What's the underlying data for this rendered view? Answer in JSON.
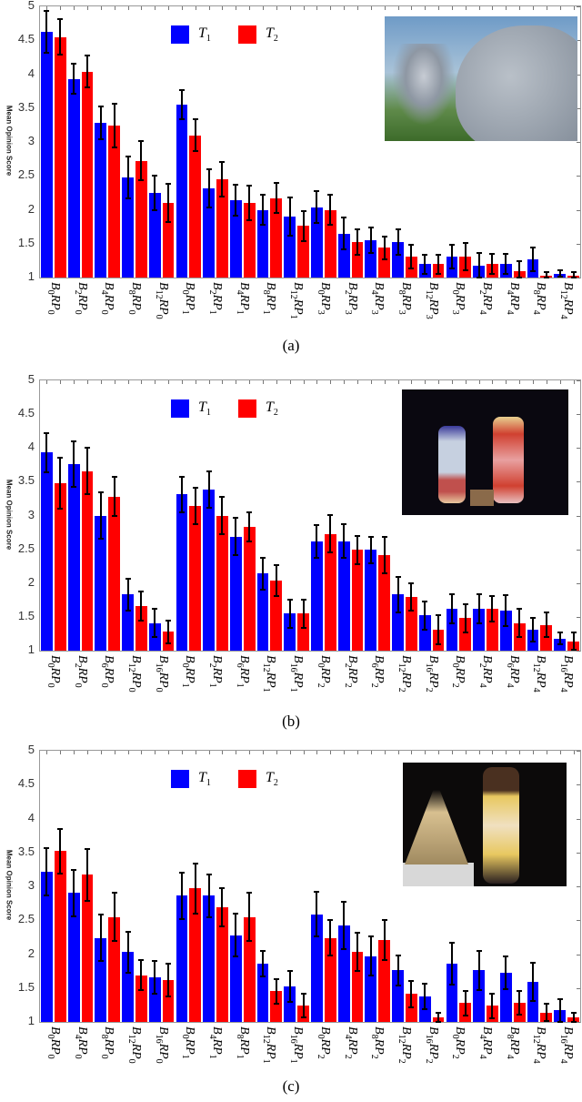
{
  "colors": {
    "T1": "#0000ff",
    "T2": "#ff0000",
    "error_bar": "#000000"
  },
  "legend": {
    "t1": "T",
    "t1_sub": "1",
    "t2": "T",
    "t2_sub": "2"
  },
  "chart_data": [
    {
      "type": "bar",
      "panel": "(a)",
      "title": "",
      "xlabel": "",
      "ylabel": "Mean Opinion Score",
      "ylim": [
        1,
        5
      ],
      "yticks": [
        "1",
        "1.5",
        "2",
        "2.5",
        "3",
        "3.5",
        "4",
        "4.5",
        "5"
      ],
      "legend_position": "top-center",
      "thumbnail": "animated pig-like character next to flowers",
      "categories": [
        "B0RP0",
        "B2RP0",
        "B4RP0",
        "B8RP0",
        "B12RP0",
        "B0RP1",
        "B2RP1",
        "B4RP1",
        "B8RP1",
        "B12RP1",
        "B0RP3",
        "B2RP3",
        "B4RP3",
        "B8RP3",
        "B12RP3",
        "B0RP3",
        "B2RP4",
        "B4RP4",
        "B8RP4",
        "B12RP4"
      ],
      "series": [
        {
          "name": "T1",
          "values": [
            4.62,
            3.93,
            3.28,
            2.48,
            2.25,
            3.55,
            2.32,
            2.14,
            2.0,
            1.9,
            2.04,
            1.65,
            1.55,
            1.52,
            1.2,
            1.31,
            1.17,
            1.2,
            1.27,
            1.06
          ],
          "err": [
            0.31,
            0.22,
            0.24,
            0.31,
            0.25,
            0.21,
            0.28,
            0.23,
            0.22,
            0.28,
            0.23,
            0.24,
            0.19,
            0.19,
            0.14,
            0.17,
            0.19,
            0.15,
            0.17,
            0.05
          ]
        },
        {
          "name": "T2",
          "values": [
            4.55,
            4.04,
            3.24,
            2.72,
            2.1,
            3.1,
            2.45,
            2.1,
            2.17,
            1.76,
            2.0,
            1.52,
            1.44,
            1.31,
            1.2,
            1.31,
            1.2,
            1.1,
            1.03,
            1.03
          ],
          "err": [
            0.26,
            0.23,
            0.32,
            0.29,
            0.28,
            0.23,
            0.25,
            0.26,
            0.22,
            0.22,
            0.22,
            0.19,
            0.17,
            0.17,
            0.14,
            0.2,
            0.15,
            0.14,
            0.05,
            0.05
          ]
        }
      ]
    },
    {
      "type": "bar",
      "panel": "(b)",
      "title": "",
      "xlabel": "",
      "ylabel": "Mean Opinion Score",
      "ylim": [
        1,
        5
      ],
      "yticks": [
        "1",
        "1.5",
        "2",
        "2.5",
        "3",
        "3.5",
        "4",
        "4.5",
        "5"
      ],
      "legend_position": "top-center",
      "thumbnail": "two clowns performing on stage",
      "categories": [
        "B0RP0",
        "B2RP0",
        "B6RP0",
        "B12RP0",
        "B16RP0",
        "B0RP1",
        "B2RP1",
        "B6RP1",
        "B12RP1",
        "B16RP1",
        "B0RP2",
        "B2RP2",
        "B6RP2",
        "B12RP2",
        "B16RP2",
        "B0RP2",
        "B2RP4",
        "B6RP4",
        "B12RP4",
        "B16RP4"
      ],
      "series": [
        {
          "name": "T1",
          "values": [
            3.93,
            3.76,
            3.0,
            1.83,
            1.41,
            3.31,
            3.38,
            2.69,
            2.14,
            1.55,
            2.62,
            2.62,
            2.49,
            1.83,
            1.52,
            1.62,
            1.62,
            1.59,
            1.31,
            1.18
          ],
          "err": [
            0.29,
            0.34,
            0.34,
            0.24,
            0.21,
            0.26,
            0.27,
            0.28,
            0.24,
            0.21,
            0.24,
            0.25,
            0.2,
            0.26,
            0.21,
            0.21,
            0.21,
            0.23,
            0.18,
            0.09
          ]
        },
        {
          "name": "T2",
          "values": [
            3.48,
            3.66,
            3.28,
            1.66,
            1.28,
            3.14,
            3.0,
            2.83,
            2.04,
            1.55,
            2.73,
            2.49,
            2.42,
            1.79,
            1.31,
            1.48,
            1.62,
            1.41,
            1.38,
            1.14
          ],
          "err": [
            0.38,
            0.34,
            0.29,
            0.22,
            0.17,
            0.27,
            0.28,
            0.22,
            0.23,
            0.21,
            0.28,
            0.21,
            0.27,
            0.2,
            0.21,
            0.21,
            0.19,
            0.21,
            0.18,
            0.13
          ]
        }
      ]
    },
    {
      "type": "bar",
      "panel": "(c)",
      "title": "",
      "xlabel": "",
      "ylabel": "Mean Opinion Score",
      "ylim": [
        1,
        5
      ],
      "yticks": [
        "1",
        "1.5",
        "2",
        "2.5",
        "3",
        "3.5",
        "4",
        "4.5",
        "5"
      ],
      "legend_position": "top-center",
      "thumbnail": "woman pouring champagne into a glass tower",
      "categories": [
        "B0RP0",
        "B4RP0",
        "B8RP0",
        "B12RP0",
        "B16RP0",
        "B0RP1",
        "B4RP1",
        "B8RP1",
        "B12RP1",
        "B16RP1",
        "B0RP2",
        "B4RP2",
        "B8RP2",
        "B12RP2",
        "B16RP2",
        "B0RP2",
        "B4RP4",
        "B8RP4",
        "B12RP4",
        "B16RP4"
      ],
      "series": [
        {
          "name": "T1",
          "values": [
            3.21,
            2.9,
            2.24,
            2.03,
            1.66,
            2.86,
            2.86,
            2.28,
            1.86,
            1.52,
            2.59,
            2.42,
            1.97,
            1.76,
            1.38,
            1.86,
            1.76,
            1.72,
            1.59,
            1.17
          ],
          "err": [
            0.35,
            0.34,
            0.34,
            0.3,
            0.24,
            0.34,
            0.31,
            0.32,
            0.19,
            0.23,
            0.33,
            0.35,
            0.29,
            0.22,
            0.19,
            0.31,
            0.29,
            0.24,
            0.28,
            0.17
          ]
        },
        {
          "name": "T2",
          "values": [
            3.52,
            3.17,
            2.55,
            1.69,
            1.62,
            2.97,
            2.69,
            2.55,
            1.45,
            1.24,
            2.24,
            2.03,
            2.21,
            1.41,
            1.07,
            1.28,
            1.24,
            1.28,
            1.14,
            1.07
          ],
          "err": [
            0.33,
            0.38,
            0.35,
            0.22,
            0.24,
            0.37,
            0.28,
            0.36,
            0.18,
            0.17,
            0.26,
            0.28,
            0.3,
            0.19,
            0.07,
            0.18,
            0.18,
            0.17,
            0.13,
            0.07
          ]
        }
      ]
    }
  ],
  "captions": [
    "(a)",
    "(b)",
    "(c)"
  ]
}
